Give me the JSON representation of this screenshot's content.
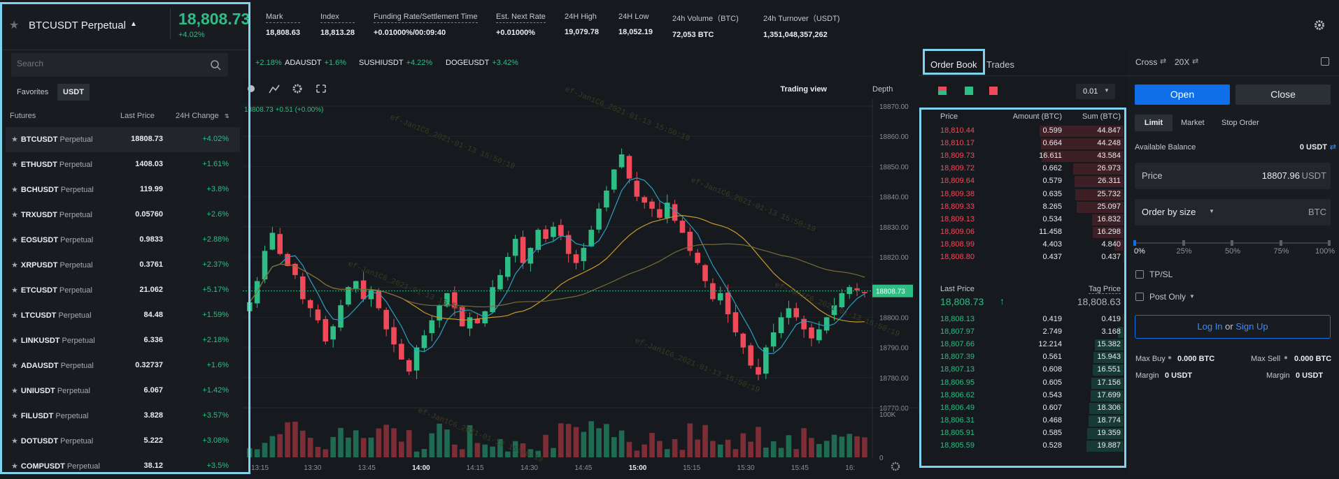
{
  "symbol": {
    "name": "BTCUSDT Perpetual",
    "price": "18,808.73",
    "change": "+4.02%"
  },
  "stats": [
    {
      "label": "Mark",
      "value": "18,808.63",
      "u": true
    },
    {
      "label": "Index",
      "value": "18,813.28",
      "u": true
    },
    {
      "label": "Funding Rate/Settlement Time",
      "value": "+0.01000%/00:09:40",
      "u": true
    },
    {
      "label": "Est. Next Rate",
      "value": "+0.01000%",
      "u": true
    },
    {
      "label": "24H High",
      "value": "19,079.78",
      "u": false
    },
    {
      "label": "24H Low",
      "value": "18,052.19",
      "u": false
    },
    {
      "label": "24h Volume（BTC)",
      "value": "72,053 BTC",
      "u": false
    },
    {
      "label": "24h Turnover（USDT)",
      "value": "1,351,048,357,262",
      "u": false
    }
  ],
  "watermark": "ef-Jan1C6_2021-01-13 15:50:19",
  "search": {
    "placeholder": "Search"
  },
  "market_tabs": [
    "Favorites",
    "USDT"
  ],
  "market_headers": {
    "futures": "Futures",
    "last": "Last Price",
    "change": "24H Change"
  },
  "markets": [
    {
      "sym": "BTCUSDT",
      "suf": "Perpetual",
      "last": "18808.73",
      "chg": "+4.02%"
    },
    {
      "sym": "ETHUSDT",
      "suf": "Perpetual",
      "last": "1408.03",
      "chg": "+1.61%"
    },
    {
      "sym": "BCHUSDT",
      "suf": "Perpetual",
      "last": "119.99",
      "chg": "+3.8%"
    },
    {
      "sym": "TRXUSDT",
      "suf": "Perpetual",
      "last": "0.05760",
      "chg": "+2.6%"
    },
    {
      "sym": "EOSUSDT",
      "suf": "Perpetual",
      "last": "0.9833",
      "chg": "+2.88%"
    },
    {
      "sym": "XRPUSDT",
      "suf": "Perpetual",
      "last": "0.3761",
      "chg": "+2.37%"
    },
    {
      "sym": "ETCUSDT",
      "suf": "Perpetual",
      "last": "21.062",
      "chg": "+5.17%"
    },
    {
      "sym": "LTCUSDT",
      "suf": "Perpetual",
      "last": "84.48",
      "chg": "+1.59%"
    },
    {
      "sym": "LINKUSDT",
      "suf": "Perpetual",
      "last": "6.336",
      "chg": "+2.18%"
    },
    {
      "sym": "ADAUSDT",
      "suf": "Perpetual",
      "last": "0.32737",
      "chg": "+1.6%"
    },
    {
      "sym": "UNIUSDT",
      "suf": "Perpetual",
      "last": "6.067",
      "chg": "+1.42%"
    },
    {
      "sym": "FILUSDT",
      "suf": "Perpetual",
      "last": "3.828",
      "chg": "+3.57%"
    },
    {
      "sym": "DOTUSDT",
      "suf": "Perpetual",
      "last": "5.222",
      "chg": "+3.08%"
    },
    {
      "sym": "COMPUSDT",
      "suf": "Perpetual",
      "last": "38.12",
      "chg": "+3.5%"
    }
  ],
  "ticker": [
    {
      "sym": "",
      "chg": "+2.18%"
    },
    {
      "sym": "ADAUSDT",
      "chg": "+1.6%"
    },
    {
      "sym": "SUSHIUSDT",
      "chg": "+4.22%"
    },
    {
      "sym": "DOGEUSDT",
      "chg": "+3.42%"
    }
  ],
  "chart_toolbar": {
    "trading_view": "Trading view",
    "depth": "Depth"
  },
  "chart_data": {
    "type": "candlestick",
    "info": "18808.73  +0.51 (+0.00%)",
    "y_ticks": [
      "18870.00",
      "18860.00",
      "18850.00",
      "18840.00",
      "18830.00",
      "18820.00",
      "18810.00",
      "18800.00",
      "18790.00",
      "18780.00",
      "18770.00"
    ],
    "ylim": [
      18770,
      18870
    ],
    "x_ticks": [
      "13:15",
      "13:30",
      "13:45",
      "14:00",
      "14:15",
      "14:30",
      "14:45",
      "15:00",
      "15:15",
      "15:30",
      "15:45",
      "16:"
    ],
    "bold_x_ticks": [
      "14:00",
      "15:00"
    ],
    "vol_ticks": [
      "100K",
      "0"
    ],
    "last_price_label": "18808.73",
    "close": [
      18805,
      18812,
      18822,
      18828,
      18821,
      18817,
      18814,
      18806,
      18803,
      18799,
      18792,
      18797,
      18804,
      18810,
      18812,
      18806,
      18809,
      18803,
      18796,
      18791,
      18786,
      18782,
      18790,
      18794,
      18799,
      18804,
      18808,
      18803,
      18797,
      18800,
      18798,
      18802,
      18810,
      18814,
      18820,
      18826,
      18818,
      18823,
      18829,
      18826,
      18830,
      18827,
      18821,
      18818,
      18823,
      18829,
      18836,
      18842,
      18849,
      18854,
      18846,
      18840,
      18838,
      18836,
      18833,
      18838,
      18832,
      18828,
      18822,
      18818,
      18812,
      18806,
      18808,
      18801,
      18795,
      18790,
      18784,
      18781,
      18790,
      18795,
      18800,
      18803,
      18800,
      18796,
      18793,
      18796,
      18800,
      18804,
      18808,
      18810,
      18809,
      18808
    ],
    "moving_averages": [
      {
        "color": "#2a9fc2",
        "period": 5
      },
      {
        "color": "#c89a2c",
        "period": 20
      },
      {
        "color": "#7a6a3a",
        "period": 35
      }
    ]
  },
  "orderbook": {
    "tabs": [
      "Order Book",
      "Trades"
    ],
    "precision": "0.01",
    "headers": {
      "price": "Price",
      "amount": "Amount (BTC)",
      "sum": "Sum (BTC)"
    },
    "asks": [
      {
        "p": "18,810.44",
        "a": "0.599",
        "s": "44.847"
      },
      {
        "p": "18,810.17",
        "a": "0.664",
        "s": "44.248"
      },
      {
        "p": "18,809.73",
        "a": "16.611",
        "s": "43.584"
      },
      {
        "p": "18,809.72",
        "a": "0.662",
        "s": "26.973"
      },
      {
        "p": "18,809.64",
        "a": "0.579",
        "s": "26.311"
      },
      {
        "p": "18,809.38",
        "a": "0.635",
        "s": "25.732"
      },
      {
        "p": "18,809.33",
        "a": "8.265",
        "s": "25.097"
      },
      {
        "p": "18,809.13",
        "a": "0.534",
        "s": "16.832"
      },
      {
        "p": "18,809.06",
        "a": "11.458",
        "s": "16.298"
      },
      {
        "p": "18,808.99",
        "a": "4.403",
        "s": "4.840"
      },
      {
        "p": "18,808.80",
        "a": "0.437",
        "s": "0.437"
      }
    ],
    "last_label": "Last Price",
    "tag_label": "Tag Price",
    "last_price": "18,808.73",
    "tag_price": "18,808.63",
    "bids": [
      {
        "p": "18,808.13",
        "a": "0.419",
        "s": "0.419"
      },
      {
        "p": "18,807.97",
        "a": "2.749",
        "s": "3.168"
      },
      {
        "p": "18,807.66",
        "a": "12.214",
        "s": "15.382"
      },
      {
        "p": "18,807.39",
        "a": "0.561",
        "s": "15.943"
      },
      {
        "p": "18,807.13",
        "a": "0.608",
        "s": "16.551"
      },
      {
        "p": "18,806.95",
        "a": "0.605",
        "s": "17.156"
      },
      {
        "p": "18,806.62",
        "a": "0.543",
        "s": "17.699"
      },
      {
        "p": "18,806.49",
        "a": "0.607",
        "s": "18.306"
      },
      {
        "p": "18,806.31",
        "a": "0.468",
        "s": "18.774"
      },
      {
        "p": "18,805.91",
        "a": "0.585",
        "s": "19.359"
      },
      {
        "p": "18,805.59",
        "a": "0.528",
        "s": "19.887"
      }
    ]
  },
  "trade": {
    "margin_mode": "Cross",
    "leverage": "20X",
    "open": "Open",
    "close": "Close",
    "order_types": [
      "Limit",
      "Market",
      "Stop Order"
    ],
    "avail_label": "Available Balance",
    "avail_value": "0 USDT",
    "price_label": "Price",
    "price_value": "18807.96",
    "price_unit": "USDT",
    "size_label": "Order by size",
    "size_unit": "BTC",
    "slider_marks": [
      "0%",
      "25%",
      "50%",
      "75%",
      "100%"
    ],
    "slider_value": 0,
    "tpsl": "TP/SL",
    "post_only": "Post Only",
    "login": "Log In",
    "or": "or",
    "signup": "Sign Up",
    "max_buy_label": "Max Buy",
    "max_buy": "0.000 BTC",
    "max_sell_label": "Max Sell",
    "max_sell": "0.000 BTC",
    "margin_label": "Margin",
    "margin_value": "0 USDT"
  },
  "colors": {
    "green": "#2ebd85",
    "red": "#f04a5a",
    "accent": "#0f6fe8",
    "highlight": "#7fd3ef"
  }
}
